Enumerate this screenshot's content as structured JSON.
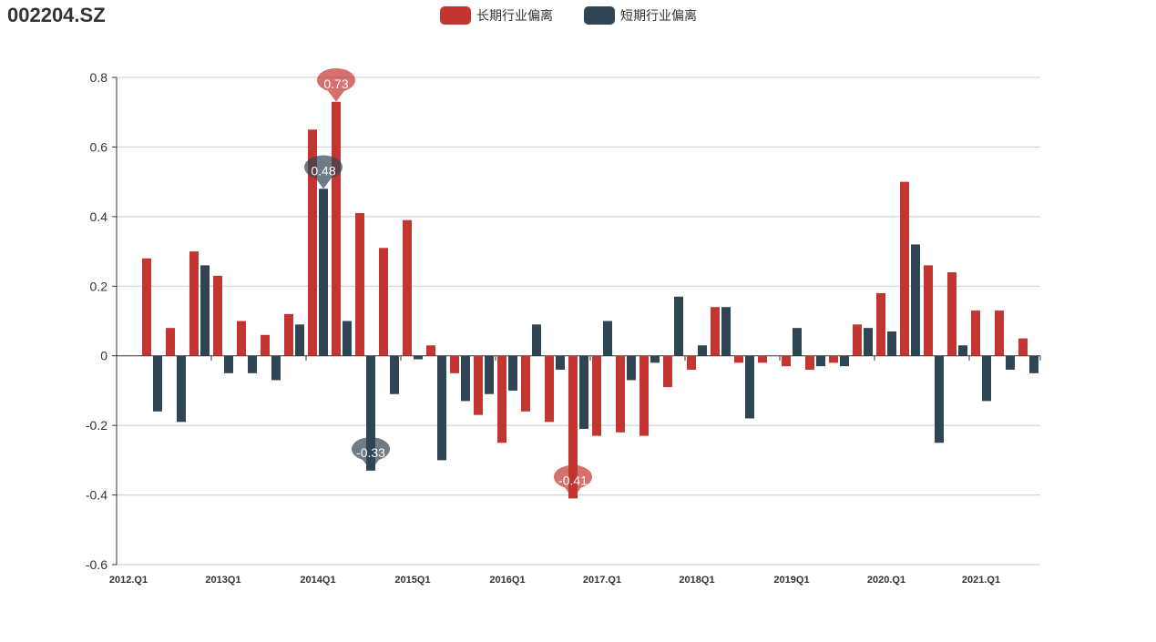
{
  "title": "002204.SZ",
  "chart_data": {
    "type": "bar",
    "title": "002204.SZ",
    "categories": [
      "2012.Q1",
      "2012Q2",
      "2012Q3",
      "2012Q4",
      "2013Q1",
      "2013Q2",
      "2013Q3",
      "2013Q4",
      "2014Q1",
      "2014Q2",
      "2014Q3",
      "2014Q4",
      "2015Q1",
      "2015Q2",
      "2015Q3",
      "2015Q4",
      "2016Q1",
      "2016Q2",
      "2016Q3",
      "2016Q4",
      "2017.Q1",
      "2017Q2",
      "2017Q3",
      "2017Q4",
      "2018Q1",
      "2018Q2",
      "2018Q3",
      "2018Q4",
      "2019Q1",
      "2019Q2",
      "2019Q3",
      "2019Q4",
      "2020.Q1",
      "2020Q2",
      "2020Q3",
      "2020Q4",
      "2021.Q1",
      "2021Q2",
      "2021Q3"
    ],
    "shown_tick_labels": [
      "2012.Q1",
      "2013Q1",
      "2014Q1",
      "2015Q1",
      "2016Q1",
      "2017.Q1",
      "2018Q1",
      "2019Q1",
      "2020.Q1",
      "2021.Q1"
    ],
    "series": [
      {
        "name": "长期行业偏离",
        "color": "#c23531",
        "values": [
          null,
          0.28,
          0.08,
          0.3,
          0.23,
          0.1,
          0.06,
          0.12,
          0.65,
          0.73,
          0.41,
          0.31,
          0.39,
          0.03,
          -0.05,
          -0.17,
          -0.25,
          -0.16,
          -0.19,
          -0.41,
          -0.23,
          -0.22,
          -0.23,
          -0.09,
          -0.04,
          0.14,
          -0.02,
          -0.02,
          -0.03,
          -0.04,
          -0.02,
          0.09,
          0.18,
          0.5,
          0.26,
          0.24,
          0.13,
          0.13,
          0.05
        ]
      },
      {
        "name": "短期行业偏离",
        "color": "#2f4554",
        "values": [
          null,
          -0.16,
          -0.19,
          0.26,
          -0.05,
          -0.05,
          -0.07,
          0.09,
          0.48,
          0.1,
          -0.33,
          -0.11,
          -0.01,
          -0.3,
          -0.13,
          -0.11,
          -0.1,
          0.09,
          -0.04,
          -0.21,
          0.1,
          -0.07,
          -0.02,
          0.17,
          0.03,
          0.14,
          -0.18,
          null,
          0.08,
          -0.03,
          -0.03,
          0.08,
          0.07,
          0.32,
          -0.25,
          0.03,
          -0.13,
          -0.04,
          -0.05
        ]
      }
    ],
    "mark_points": [
      {
        "series": 0,
        "label": "0.73",
        "category": "2014Q2",
        "value": 0.73
      },
      {
        "series": 0,
        "label": "-0.41",
        "category": "2016Q4",
        "value": -0.41
      },
      {
        "series": 1,
        "label": "0.48",
        "category": "2014Q1",
        "value": 0.48
      },
      {
        "series": 1,
        "label": "-0.33",
        "category": "2014Q3",
        "value": -0.33
      }
    ],
    "yticks": [
      "0.8",
      "0.6",
      "0.4",
      "0.2",
      "0",
      "-0.2",
      "-0.4",
      "-0.6"
    ],
    "ylim": [
      -0.6,
      0.8
    ],
    "xlabel": "",
    "ylabel": "",
    "grid": true,
    "legend_position": "top-center"
  }
}
